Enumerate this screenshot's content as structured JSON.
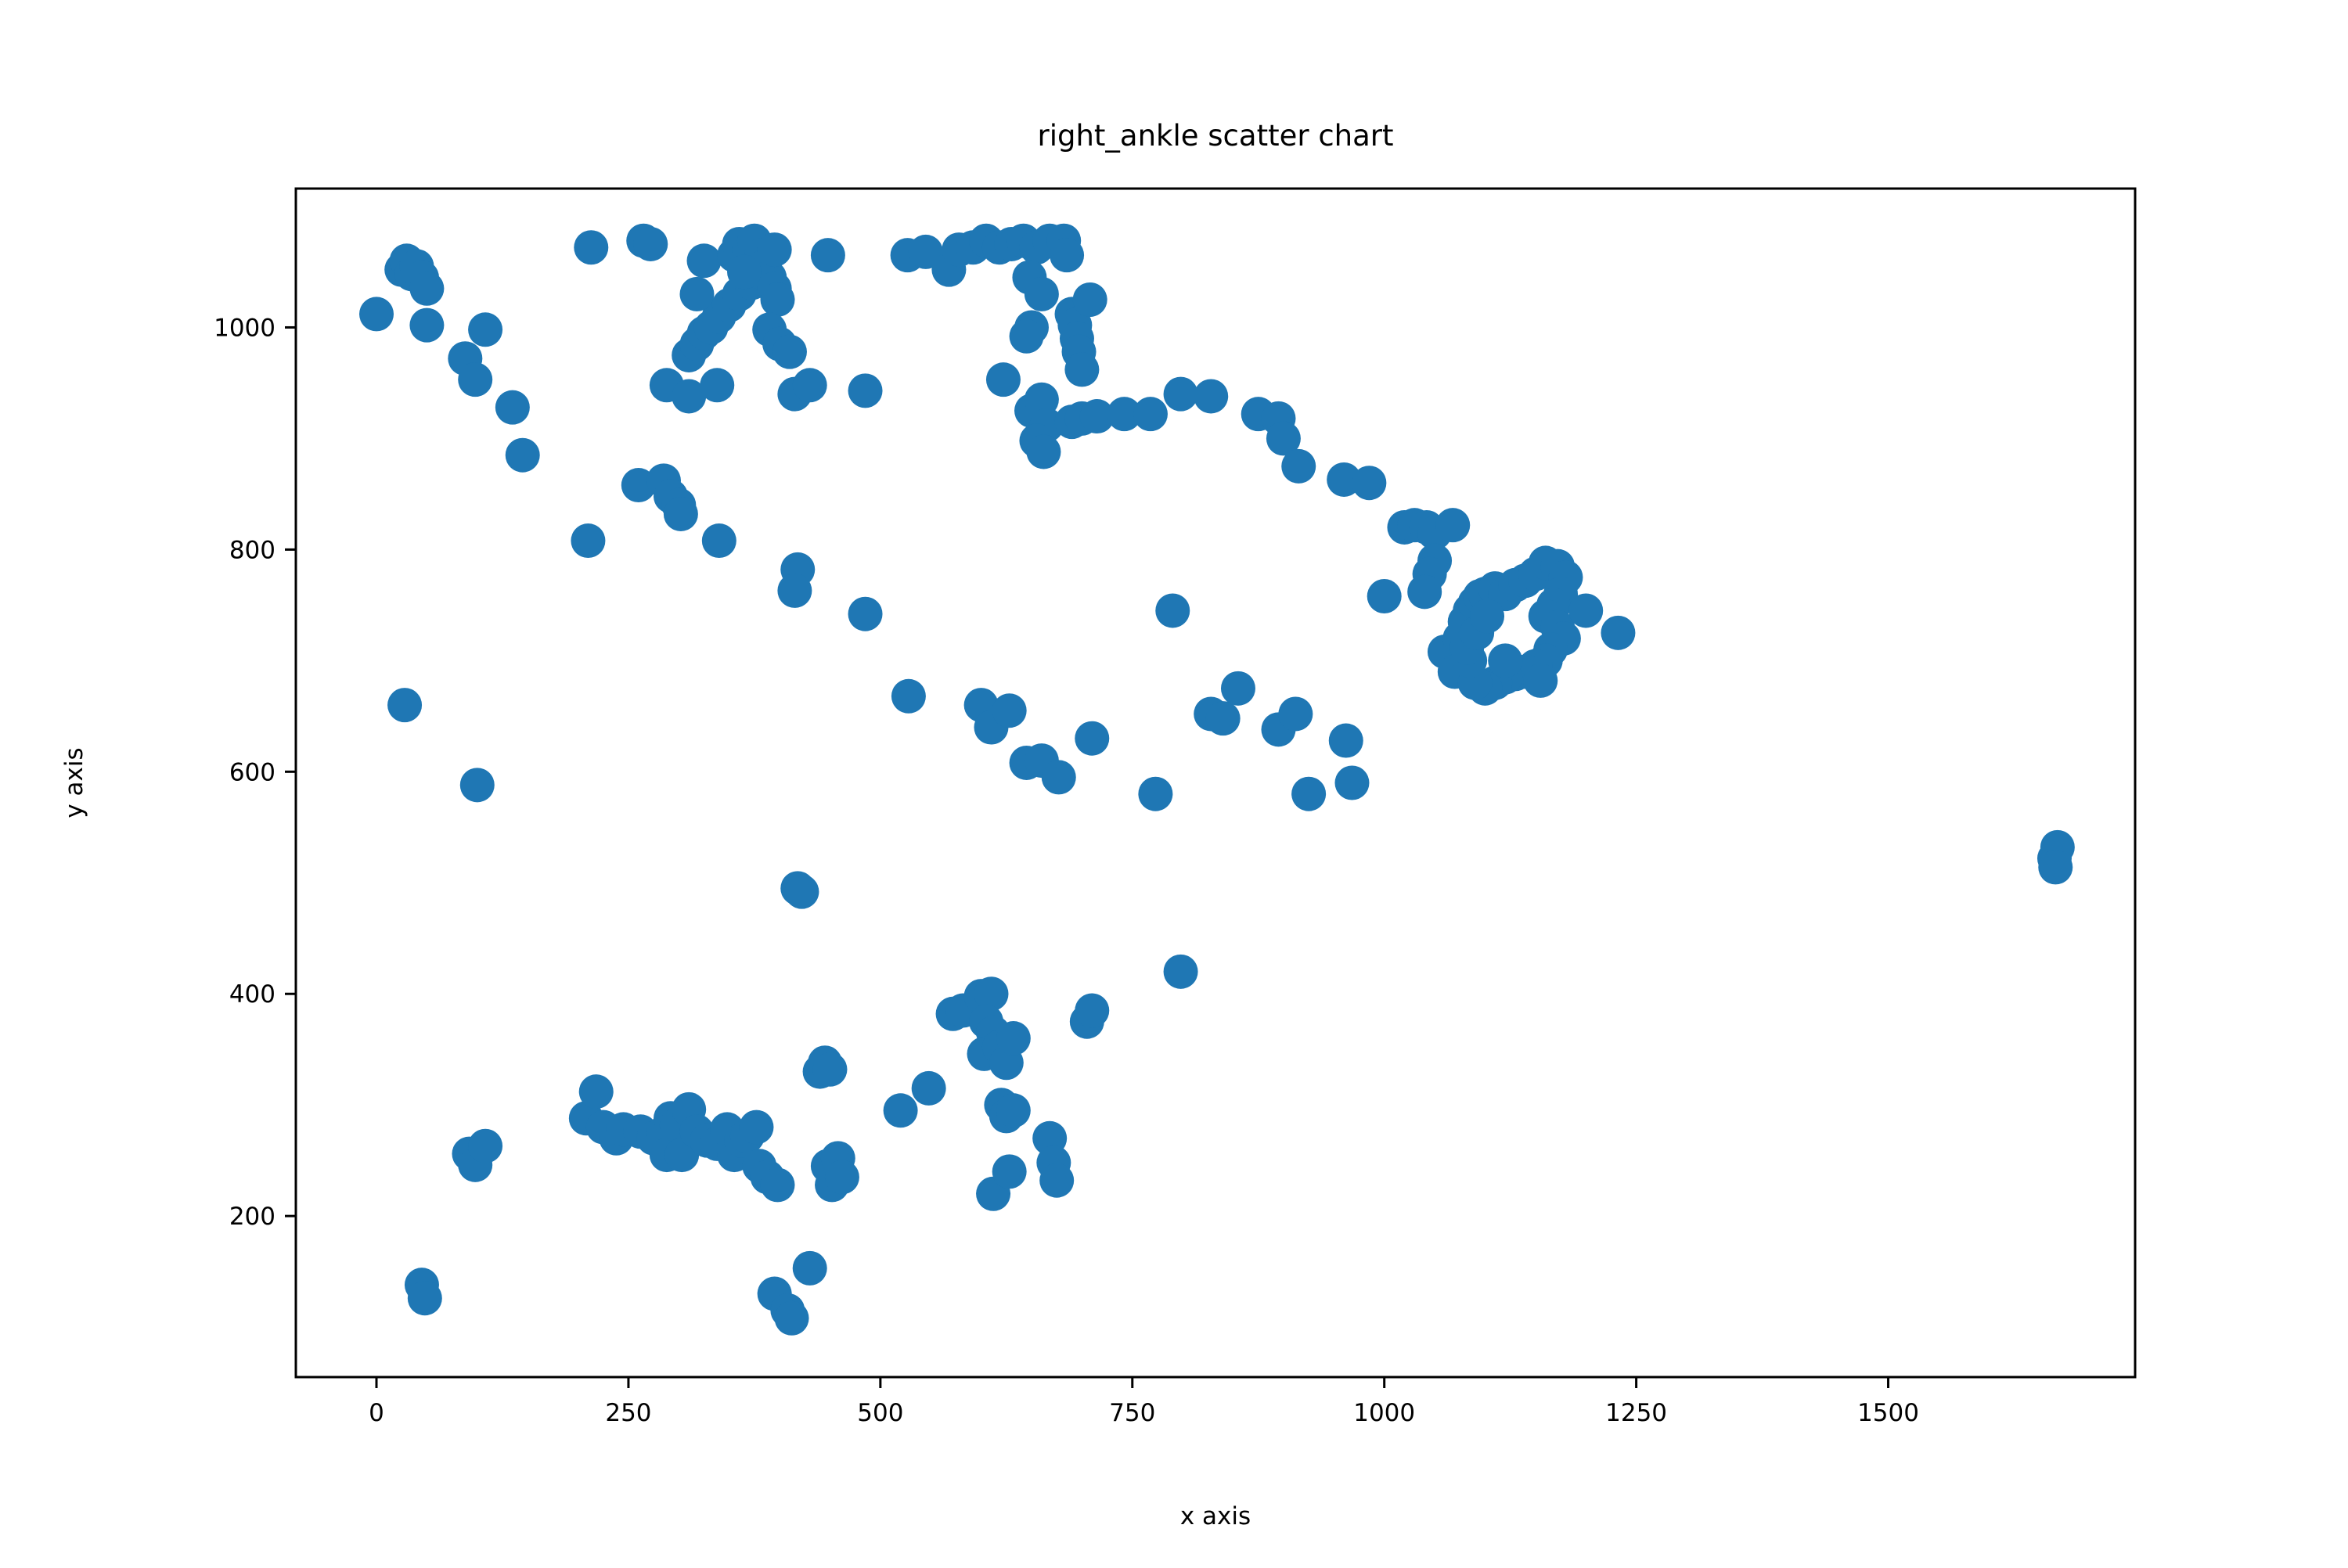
{
  "chart_data": {
    "type": "scatter",
    "title": "right_ankle scatter chart",
    "xlabel": "x axis",
    "ylabel": "y axis",
    "xlim": [
      -80,
      1745
    ],
    "ylim": [
      55,
      1125
    ],
    "x_ticks": [
      0,
      250,
      500,
      750,
      1000,
      1250,
      1500
    ],
    "y_ticks": [
      200,
      400,
      600,
      800,
      1000
    ],
    "grid": false,
    "legend": "none",
    "marker_color": "#1f77b4",
    "series": [
      {
        "points": [
          [
            0,
            1012
          ],
          [
            25,
            1052
          ],
          [
            30,
            1060
          ],
          [
            35,
            1048
          ],
          [
            40,
            1055
          ],
          [
            45,
            1045
          ],
          [
            50,
            1035
          ],
          [
            50,
            1002
          ],
          [
            88,
            972
          ],
          [
            98,
            953
          ],
          [
            108,
            998
          ],
          [
            135,
            928
          ],
          [
            145,
            885
          ],
          [
            213,
            1072
          ],
          [
            265,
            1078
          ],
          [
            272,
            1075
          ],
          [
            210,
            808
          ],
          [
            260,
            858
          ],
          [
            285,
            862
          ],
          [
            292,
            848
          ],
          [
            300,
            840
          ],
          [
            302,
            832
          ],
          [
            340,
            808
          ],
          [
            288,
            948
          ],
          [
            310,
            938
          ],
          [
            338,
            948
          ],
          [
            310,
            975
          ],
          [
            318,
            985
          ],
          [
            325,
            995
          ],
          [
            332,
            1000
          ],
          [
            340,
            1010
          ],
          [
            350,
            1020
          ],
          [
            360,
            1030
          ],
          [
            372,
            1040
          ],
          [
            380,
            1050
          ],
          [
            318,
            1030
          ],
          [
            325,
            1060
          ],
          [
            355,
            1065
          ],
          [
            360,
            1075
          ],
          [
            370,
            1070
          ],
          [
            375,
            1078
          ],
          [
            382,
            1065
          ],
          [
            385,
            1055
          ],
          [
            390,
            1045
          ],
          [
            395,
            1035
          ],
          [
            398,
            1025
          ],
          [
            395,
            1070
          ],
          [
            365,
            1050
          ],
          [
            390,
            998
          ],
          [
            400,
            985
          ],
          [
            410,
            978
          ],
          [
            415,
            940
          ],
          [
            430,
            948
          ],
          [
            448,
            1065
          ],
          [
            485,
            943
          ],
          [
            418,
            782
          ],
          [
            415,
            763
          ],
          [
            485,
            742
          ],
          [
            527,
            1065
          ],
          [
            545,
            1068
          ],
          [
            568,
            1052
          ],
          [
            578,
            1070
          ],
          [
            592,
            1072
          ],
          [
            605,
            1078
          ],
          [
            618,
            1072
          ],
          [
            630,
            1075
          ],
          [
            642,
            1078
          ],
          [
            655,
            1072
          ],
          [
            668,
            1078
          ],
          [
            682,
            1078
          ],
          [
            685,
            1065
          ],
          [
            648,
            1045
          ],
          [
            660,
            1030
          ],
          [
            650,
            1000
          ],
          [
            645,
            992
          ],
          [
            622,
            953
          ],
          [
            690,
            1012
          ],
          [
            693,
            1002
          ],
          [
            695,
            990
          ],
          [
            697,
            978
          ],
          [
            700,
            962
          ],
          [
            708,
            1025
          ],
          [
            650,
            925
          ],
          [
            660,
            935
          ],
          [
            665,
            912
          ],
          [
            655,
            898
          ],
          [
            662,
            888
          ],
          [
            690,
            915
          ],
          [
            700,
            918
          ],
          [
            715,
            920
          ],
          [
            742,
            922
          ],
          [
            768,
            922
          ],
          [
            798,
            940
          ],
          [
            828,
            938
          ],
          [
            875,
            922
          ],
          [
            895,
            918
          ],
          [
            900,
            900
          ],
          [
            915,
            875
          ],
          [
            960,
            863
          ],
          [
            985,
            860
          ],
          [
            1020,
            820
          ],
          [
            1030,
            822
          ],
          [
            1042,
            820
          ],
          [
            1050,
            815
          ],
          [
            1068,
            822
          ],
          [
            1050,
            790
          ],
          [
            1045,
            778
          ],
          [
            1040,
            762
          ],
          [
            1000,
            758
          ],
          [
            1060,
            708
          ],
          [
            1070,
            690
          ],
          [
            1075,
            720
          ],
          [
            1080,
            735
          ],
          [
            1085,
            745
          ],
          [
            1090,
            752
          ],
          [
            1095,
            758
          ],
          [
            1100,
            760
          ],
          [
            1110,
            765
          ],
          [
            1120,
            760
          ],
          [
            1130,
            768
          ],
          [
            1140,
            772
          ],
          [
            1150,
            778
          ],
          [
            1160,
            788
          ],
          [
            1172,
            785
          ],
          [
            1180,
            775
          ],
          [
            1175,
            760
          ],
          [
            1168,
            750
          ],
          [
            1160,
            740
          ],
          [
            1172,
            730
          ],
          [
            1178,
            720
          ],
          [
            1165,
            710
          ],
          [
            1160,
            700
          ],
          [
            1150,
            695
          ],
          [
            1140,
            690
          ],
          [
            1130,
            688
          ],
          [
            1120,
            685
          ],
          [
            1110,
            680
          ],
          [
            1100,
            675
          ],
          [
            1090,
            680
          ],
          [
            1085,
            700
          ],
          [
            1082,
            712
          ],
          [
            1092,
            725
          ],
          [
            1102,
            740
          ],
          [
            1120,
            700
          ],
          [
            1155,
            682
          ],
          [
            1200,
            745
          ],
          [
            1232,
            725
          ],
          [
            28,
            660
          ],
          [
            100,
            588
          ],
          [
            528,
            668
          ],
          [
            600,
            660
          ],
          [
            610,
            640
          ],
          [
            628,
            655
          ],
          [
            645,
            608
          ],
          [
            660,
            610
          ],
          [
            677,
            595
          ],
          [
            710,
            630
          ],
          [
            773,
            580
          ],
          [
            790,
            745
          ],
          [
            828,
            652
          ],
          [
            840,
            648
          ],
          [
            855,
            675
          ],
          [
            895,
            638
          ],
          [
            912,
            652
          ],
          [
            925,
            580
          ],
          [
            962,
            628
          ],
          [
            968,
            590
          ],
          [
            418,
            495
          ],
          [
            422,
            492
          ],
          [
            798,
            420
          ],
          [
            1665,
            522
          ],
          [
            1668,
            532
          ],
          [
            1666,
            514
          ],
          [
            572,
            382
          ],
          [
            582,
            385
          ],
          [
            600,
            398
          ],
          [
            610,
            400
          ],
          [
            605,
            375
          ],
          [
            612,
            365
          ],
          [
            603,
            346
          ],
          [
            618,
            352
          ],
          [
            625,
            338
          ],
          [
            632,
            360
          ],
          [
            705,
            375
          ],
          [
            710,
            385
          ],
          [
            440,
            330
          ],
          [
            445,
            338
          ],
          [
            450,
            332
          ],
          [
            520,
            295
          ],
          [
            548,
            315
          ],
          [
            620,
            300
          ],
          [
            625,
            290
          ],
          [
            632,
            295
          ],
          [
            612,
            220
          ],
          [
            628,
            240
          ],
          [
            668,
            270
          ],
          [
            672,
            248
          ],
          [
            675,
            232
          ],
          [
            208,
            288
          ],
          [
            218,
            312
          ],
          [
            225,
            280
          ],
          [
            238,
            270
          ],
          [
            245,
            278
          ],
          [
            262,
            276
          ],
          [
            275,
            270
          ],
          [
            285,
            275
          ],
          [
            288,
            255
          ],
          [
            292,
            288
          ],
          [
            298,
            282
          ],
          [
            303,
            255
          ],
          [
            310,
            296
          ],
          [
            318,
            276
          ],
          [
            328,
            268
          ],
          [
            338,
            265
          ],
          [
            348,
            278
          ],
          [
            355,
            255
          ],
          [
            362,
            268
          ],
          [
            368,
            272
          ],
          [
            377,
            280
          ],
          [
            380,
            245
          ],
          [
            388,
            235
          ],
          [
            398,
            228
          ],
          [
            92,
            256
          ],
          [
            98,
            246
          ],
          [
            108,
            263
          ],
          [
            448,
            245
          ],
          [
            452,
            228
          ],
          [
            458,
            252
          ],
          [
            462,
            235
          ],
          [
            45,
            138
          ],
          [
            48,
            126
          ],
          [
            395,
            130
          ],
          [
            408,
            115
          ],
          [
            412,
            108
          ],
          [
            430,
            153
          ]
        ]
      }
    ]
  }
}
